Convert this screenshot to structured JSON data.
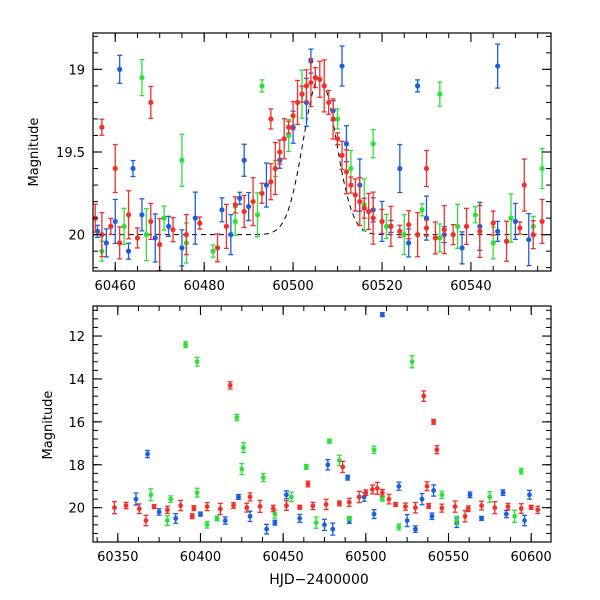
{
  "chart_data": [
    {
      "type": "scatter",
      "title": "",
      "xlabel": "",
      "ylabel": "Magnitude",
      "xlim": [
        60455,
        60558
      ],
      "ylim": [
        20.22,
        18.78
      ],
      "y_inverted": true,
      "x_ticks": [
        60460,
        60480,
        60500,
        60520,
        60540
      ],
      "x_tick_labels": [
        "60460",
        "60480",
        "60500",
        "60520",
        "60540"
      ],
      "y_ticks": [
        19,
        19.5,
        20
      ],
      "y_tick_labels": [
        "19",
        "19.5",
        "20"
      ],
      "model_curve": {
        "color": "#000000",
        "style": "dashed",
        "baseline_mag": 20.0,
        "peak_x": 60506,
        "peak_mag": 19.05,
        "width": 5.2
      },
      "series": [
        {
          "color": "#1a5fe0",
          "points": [
            [
              60456,
              19.98
            ],
            [
              60458,
              20.05
            ],
            [
              60460,
              19.92
            ],
            [
              60463,
              20.1
            ],
            [
              60466,
              19.88
            ],
            [
              60469,
              20.02
            ],
            [
              60472,
              19.95
            ],
            [
              60475,
              20.08
            ],
            [
              60478,
              19.9
            ],
            [
              60484,
              19.85
            ],
            [
              60486,
              20.0
            ],
            [
              60488,
              19.78
            ],
            [
              60490,
              19.83
            ],
            [
              60494,
              19.7
            ],
            [
              60497,
              19.55
            ],
            [
              60500,
              19.35
            ],
            [
              60503,
              19.2
            ],
            [
              60509,
              19.25
            ],
            [
              60512,
              19.45
            ],
            [
              60515,
              19.7
            ],
            [
              60518,
              19.85
            ],
            [
              60520,
              19.92
            ],
            [
              60522,
              19.95
            ],
            [
              60526,
              20.05
            ],
            [
              60530,
              19.9
            ],
            [
              60534,
              20.0
            ],
            [
              60538,
              20.08
            ],
            [
              60542,
              19.95
            ],
            [
              60546,
              19.98
            ],
            [
              60550,
              19.92
            ],
            [
              60553,
              20.03
            ],
            [
              60504,
              18.95
            ],
            [
              60511,
              18.98
            ],
            [
              60528,
              19.1
            ],
            [
              60461,
              19.0
            ],
            [
              60546,
              18.98
            ],
            [
              60464,
              19.6
            ],
            [
              60489,
              19.55
            ],
            [
              60524,
              19.6
            ]
          ]
        },
        {
          "color": "#2ee03a",
          "points": [
            [
              60457,
              20.1
            ],
            [
              60462,
              19.95
            ],
            [
              60467,
              20.0
            ],
            [
              60471,
              19.9
            ],
            [
              60476,
              20.05
            ],
            [
              60482,
              20.1
            ],
            [
              60487,
              19.92
            ],
            [
              60492,
              19.88
            ],
            [
              60496,
              19.6
            ],
            [
              60499,
              19.4
            ],
            [
              60502,
              19.15
            ],
            [
              60510,
              19.3
            ],
            [
              60513,
              19.6
            ],
            [
              60516,
              19.82
            ],
            [
              60521,
              19.95
            ],
            [
              60525,
              20.0
            ],
            [
              60529,
              19.85
            ],
            [
              60533,
              20.02
            ],
            [
              60537,
              19.95
            ],
            [
              60541,
              19.88
            ],
            [
              60545,
              20.05
            ],
            [
              60549,
              19.9
            ],
            [
              60554,
              19.95
            ],
            [
              60466,
              19.05
            ],
            [
              60475,
              19.55
            ],
            [
              60533,
              19.15
            ],
            [
              60556,
              19.6
            ],
            [
              60493,
              19.1
            ],
            [
              60518,
              19.45
            ]
          ]
        },
        {
          "color": "#f0302a",
          "points": [
            [
              60455.5,
              19.9
            ],
            [
              60457,
              20.0
            ],
            [
              60459,
              19.95
            ],
            [
              60461,
              20.05
            ],
            [
              60463,
              19.88
            ],
            [
              60465,
              20.02
            ],
            [
              60468,
              19.92
            ],
            [
              60470,
              20.06
            ],
            [
              60473,
              19.97
            ],
            [
              60476,
              20.0
            ],
            [
              60479,
              19.93
            ],
            [
              60483,
              20.08
            ],
            [
              60485,
              19.95
            ],
            [
              60487,
              19.82
            ],
            [
              60489,
              19.86
            ],
            [
              60491,
              19.8
            ],
            [
              60493,
              19.75
            ],
            [
              60495,
              19.68
            ],
            [
              60496,
              19.6
            ],
            [
              60497,
              19.5
            ],
            [
              60498,
              19.42
            ],
            [
              60499,
              19.35
            ],
            [
              60500,
              19.28
            ],
            [
              60501,
              19.2
            ],
            [
              60502,
              19.15
            ],
            [
              60503,
              19.1
            ],
            [
              60504,
              19.08
            ],
            [
              60505,
              19.05
            ],
            [
              60506,
              19.06
            ],
            [
              60507,
              19.1
            ],
            [
              60508,
              19.2
            ],
            [
              60509,
              19.3
            ],
            [
              60510,
              19.42
            ],
            [
              60511,
              19.52
            ],
            [
              60512,
              19.62
            ],
            [
              60513,
              19.7
            ],
            [
              60514,
              19.76
            ],
            [
              60515,
              19.8
            ],
            [
              60516,
              19.84
            ],
            [
              60517,
              19.86
            ],
            [
              60518,
              19.9
            ],
            [
              60520,
              19.92
            ],
            [
              60522,
              19.95
            ],
            [
              60524,
              19.98
            ],
            [
              60526,
              19.94
            ],
            [
              60528,
              20.0
            ],
            [
              60530,
              19.96
            ],
            [
              60532,
              20.02
            ],
            [
              60534,
              19.97
            ],
            [
              60536,
              20.0
            ],
            [
              60539,
              19.95
            ],
            [
              60542,
              19.98
            ],
            [
              60545,
              19.93
            ],
            [
              60548,
              20.04
            ],
            [
              60551,
              19.96
            ],
            [
              60554,
              20.0
            ],
            [
              60556,
              19.92
            ],
            [
              60457,
              19.35
            ],
            [
              60468,
              19.2
            ],
            [
              60460,
              19.6
            ],
            [
              60495,
              19.3
            ],
            [
              60530,
              19.6
            ],
            [
              60552,
              19.7
            ]
          ]
        }
      ]
    },
    {
      "type": "scatter",
      "title": "",
      "xlabel": "HJD−2400000",
      "ylabel": "Magnitude",
      "xlim": [
        60335,
        60612
      ],
      "ylim": [
        21.6,
        10.6
      ],
      "y_inverted": true,
      "x_ticks": [
        60350,
        60400,
        60450,
        60500,
        60550,
        60600
      ],
      "x_tick_labels": [
        "60350",
        "60400",
        "60450",
        "60500",
        "60550",
        "60600"
      ],
      "y_ticks": [
        12,
        14,
        16,
        18,
        20
      ],
      "y_tick_labels": [
        "12",
        "14",
        "16",
        "18",
        "20"
      ],
      "series": [
        {
          "color": "#1a5fe0",
          "points": [
            [
              60510,
              11.0
            ],
            [
              60368,
              17.5
            ],
            [
              60477,
              18.0
            ],
            [
              60489,
              18.6
            ],
            [
              60520,
              19.0
            ],
            [
              60541,
              19.2
            ],
            [
              60583,
              19.3
            ],
            [
              60599,
              19.4
            ],
            [
              60361,
              19.6
            ],
            [
              60375,
              20.2
            ],
            [
              60385,
              20.5
            ],
            [
              60400,
              20.3
            ],
            [
              60415,
              20.6
            ],
            [
              60430,
              20.4
            ],
            [
              60445,
              20.7
            ],
            [
              60460,
              20.5
            ],
            [
              60475,
              20.8
            ],
            [
              60490,
              20.6
            ],
            [
              60505,
              20.3
            ],
            [
              60525,
              20.6
            ],
            [
              60540,
              20.4
            ],
            [
              60555,
              20.7
            ],
            [
              60570,
              20.5
            ],
            [
              60585,
              20.3
            ],
            [
              60596,
              20.6
            ],
            [
              60423,
              19.5
            ],
            [
              60452,
              19.4
            ],
            [
              60534,
              19.6
            ],
            [
              60563,
              19.4
            ],
            [
              60499,
              19.5
            ],
            [
              60480,
              21.0
            ],
            [
              60530,
              21.0
            ],
            [
              60440,
              21.0
            ]
          ]
        },
        {
          "color": "#2ee03a",
          "points": [
            [
              60391,
              12.4
            ],
            [
              60398,
              13.2
            ],
            [
              60528,
              13.2
            ],
            [
              60422,
              15.8
            ],
            [
              60426,
              17.2
            ],
            [
              60478,
              16.9
            ],
            [
              60505,
              17.3
            ],
            [
              60484,
              17.8
            ],
            [
              60464,
              18.1
            ],
            [
              60438,
              18.6
            ],
            [
              60425,
              18.2
            ],
            [
              60594,
              18.3
            ],
            [
              60398,
              19.3
            ],
            [
              60370,
              19.4
            ],
            [
              60382,
              19.6
            ],
            [
              60455,
              19.5
            ],
            [
              60510,
              19.6
            ],
            [
              60546,
              19.4
            ],
            [
              60575,
              19.5
            ],
            [
              60410,
              20.5
            ],
            [
              60445,
              20.3
            ],
            [
              60470,
              20.7
            ],
            [
              60520,
              20.9
            ],
            [
              60555,
              20.6
            ],
            [
              60590,
              20.4
            ],
            [
              60404,
              20.8
            ],
            [
              60380,
              20.6
            ],
            [
              60490,
              20.5
            ]
          ]
        },
        {
          "color": "#f0302a",
          "points": [
            [
              60418,
              14.3
            ],
            [
              60535,
              14.8
            ],
            [
              60541,
              16.0
            ],
            [
              60543,
              17.3
            ],
            [
              60486,
              18.1
            ],
            [
              60465,
              18.9
            ],
            [
              60537,
              19.0
            ],
            [
              60348,
              20.0
            ],
            [
              60355,
              19.9
            ],
            [
              60363,
              20.05
            ],
            [
              60372,
              19.95
            ],
            [
              60380,
              20.1
            ],
            [
              60388,
              19.9
            ],
            [
              60396,
              20.02
            ],
            [
              60404,
              19.95
            ],
            [
              60412,
              20.06
            ],
            [
              60420,
              19.9
            ],
            [
              60428,
              20.0
            ],
            [
              60436,
              19.94
            ],
            [
              60444,
              20.04
            ],
            [
              60452,
              19.9
            ],
            [
              60460,
              19.98
            ],
            [
              60468,
              19.92
            ],
            [
              60476,
              19.85
            ],
            [
              60484,
              19.8
            ],
            [
              60490,
              19.75
            ],
            [
              60496,
              19.5
            ],
            [
              60500,
              19.3
            ],
            [
              60504,
              19.15
            ],
            [
              60507,
              19.1
            ],
            [
              60510,
              19.3
            ],
            [
              60514,
              19.6
            ],
            [
              60518,
              19.85
            ],
            [
              60524,
              19.95
            ],
            [
              60530,
              20.0
            ],
            [
              60538,
              19.92
            ],
            [
              60546,
              20.02
            ],
            [
              60554,
              19.95
            ],
            [
              60562,
              20.05
            ],
            [
              60570,
              19.9
            ],
            [
              60578,
              20.0
            ],
            [
              60586,
              19.95
            ],
            [
              60594,
              20.04
            ],
            [
              60600,
              19.98
            ],
            [
              60604,
              20.1
            ],
            [
              60367,
              20.6
            ],
            [
              60395,
              20.4
            ],
            [
              60430,
              19.5
            ],
            [
              60560,
              20.4
            ]
          ]
        }
      ]
    }
  ]
}
